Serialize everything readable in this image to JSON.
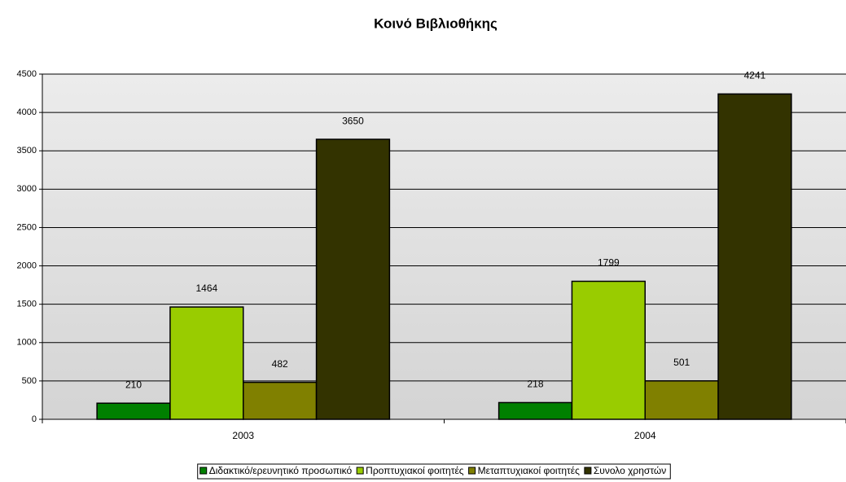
{
  "chart_data": {
    "type": "bar",
    "title": "Κοινό Βιβλιοθήκης",
    "categories": [
      "2003",
      "2004"
    ],
    "series": [
      {
        "name": "Διδακτικό/ερευνητικό προσωπικό",
        "color": "#008000",
        "values": [
          210,
          218
        ]
      },
      {
        "name": "Προπτυχιακοί φοιτητές",
        "color": "#99cc00",
        "values": [
          1464,
          1799
        ]
      },
      {
        "name": "Μεταπτυχιακοί φοιτητές",
        "color": "#808000",
        "values": [
          482,
          501
        ]
      },
      {
        "name": "Συνολο χρηστών",
        "color": "#333300",
        "values": [
          3650,
          4241
        ]
      }
    ],
    "ylim": [
      0,
      4500
    ],
    "yticks": [
      0,
      500,
      1000,
      1500,
      2000,
      2500,
      3000,
      3500,
      4000,
      4500
    ],
    "grid": true,
    "legend": "bottom"
  }
}
